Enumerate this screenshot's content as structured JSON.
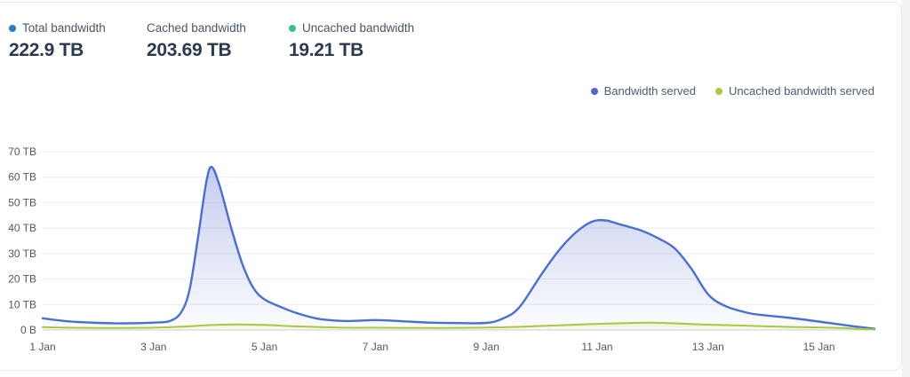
{
  "stats": {
    "items": [
      {
        "label": "Total bandwidth",
        "value": "222.9 TB",
        "dot_color": "#2e7cc1"
      },
      {
        "label": "Cached bandwidth",
        "value": "203.69 TB",
        "dot_color": ""
      },
      {
        "label": "Uncached bandwidth",
        "value": "19.21 TB",
        "dot_color": "#3fc183"
      }
    ]
  },
  "legend": {
    "items": [
      {
        "label": "Bandwidth served",
        "color": "#5065d4"
      },
      {
        "label": "Uncached bandwidth served",
        "color": "#a9c93c"
      }
    ]
  },
  "chart_data": {
    "type": "area",
    "x_unit": "date (January)",
    "xlim_days": [
      1,
      16
    ],
    "ylim_tb": [
      0,
      70
    ],
    "grid": true,
    "legend_position": "top-right",
    "y_ticks": [
      {
        "tb": 70,
        "label": "70 TB"
      },
      {
        "tb": 60,
        "label": "60 TB"
      },
      {
        "tb": 50,
        "label": "50 TB"
      },
      {
        "tb": 40,
        "label": "40 TB"
      },
      {
        "tb": 30,
        "label": "30 TB"
      },
      {
        "tb": 20,
        "label": "20 TB"
      },
      {
        "tb": 10,
        "label": "10 TB"
      },
      {
        "tb": 0,
        "label": "0 B"
      }
    ],
    "x_ticks": [
      {
        "day": 1,
        "label": "1 Jan"
      },
      {
        "day": 3,
        "label": "3 Jan"
      },
      {
        "day": 5,
        "label": "5 Jan"
      },
      {
        "day": 7,
        "label": "7 Jan"
      },
      {
        "day": 9,
        "label": "9 Jan"
      },
      {
        "day": 11,
        "label": "11 Jan"
      },
      {
        "day": 13,
        "label": "13 Jan"
      },
      {
        "day": 15,
        "label": "15 Jan"
      }
    ],
    "series": [
      {
        "name": "Bandwidth served",
        "color": "#4a6fd4",
        "line_width": 2.4,
        "fill_from": "rgba(91,116,209,0.36)",
        "fill_to": "rgba(91,116,209,0.02)",
        "x": [
          1,
          1.4,
          2,
          2.5,
          3,
          3.3,
          3.5,
          3.65,
          3.8,
          3.95,
          4.05,
          4.2,
          4.4,
          4.6,
          4.8,
          5,
          5.3,
          5.6,
          6,
          6.5,
          7,
          7.5,
          8,
          8.5,
          9,
          9.3,
          9.6,
          10,
          10.3,
          10.6,
          10.9,
          11.15,
          11.4,
          11.8,
          12.1,
          12.4,
          12.7,
          13,
          13.3,
          13.7,
          14,
          14.5,
          15,
          15.5,
          16
        ],
        "y": [
          4.6,
          3.5,
          2.8,
          2.6,
          2.9,
          3.6,
          7,
          16,
          36,
          58,
          64,
          56,
          40,
          26,
          16.5,
          12,
          9,
          6.5,
          4.3,
          3.5,
          3.9,
          3.4,
          2.9,
          2.7,
          2.8,
          4.5,
          9,
          22,
          31,
          38,
          42.5,
          43,
          41.5,
          39,
          36,
          32,
          24,
          14,
          9.5,
          6.8,
          5.8,
          4.7,
          3.3,
          1.8,
          0.5
        ]
      },
      {
        "name": "Uncached bandwidth served",
        "color": "#a9c93c",
        "line_width": 2,
        "fill_from": "rgba(169,201,60,0.20)",
        "fill_to": "rgba(169,201,60,0.04)",
        "x": [
          1,
          1.5,
          2,
          2.5,
          3,
          3.5,
          4,
          4.5,
          5,
          5.5,
          6,
          6.5,
          7,
          7.5,
          8,
          8.5,
          9,
          9.5,
          10,
          10.5,
          11,
          11.5,
          12,
          12.5,
          13,
          13.5,
          14,
          14.5,
          15,
          15.5,
          16
        ],
        "y": [
          1.1,
          0.9,
          0.8,
          0.8,
          0.9,
          1.3,
          1.9,
          2.2,
          2.0,
          1.5,
          1.1,
          0.9,
          0.9,
          0.85,
          0.8,
          0.85,
          0.95,
          1.2,
          1.6,
          2.0,
          2.4,
          2.7,
          2.9,
          2.5,
          2.1,
          1.8,
          1.5,
          1.2,
          1.0,
          0.7,
          0.2
        ]
      }
    ]
  }
}
